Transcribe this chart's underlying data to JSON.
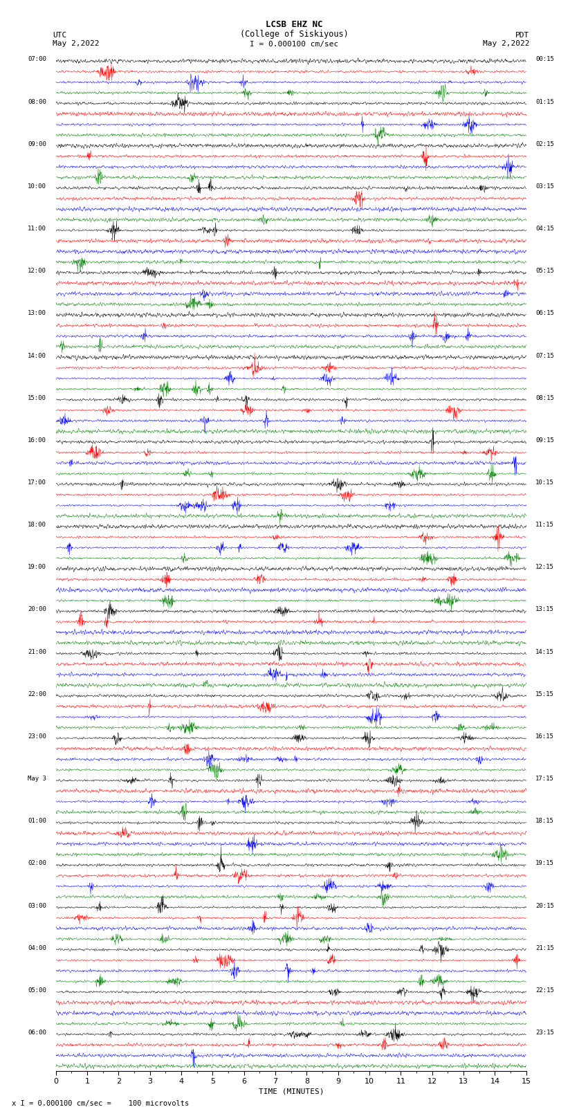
{
  "title_line1": "LCSB EHZ NC",
  "title_line2": "(College of Siskiyous)",
  "left_header": "UTC",
  "right_header": "PDT",
  "left_date": "May 2,2022",
  "right_date": "May 2,2022",
  "scale_text": "I = 0.000100 cm/sec",
  "footer_text": "x I = 0.000100 cm/sec =    100 microvolts",
  "xlabel": "TIME (MINUTES)",
  "trace_colors": [
    "black",
    "red",
    "blue",
    "green"
  ],
  "num_hour_groups": 24,
  "traces_per_group": 4,
  "bg_color": "#ffffff",
  "fig_width": 8.5,
  "fig_height": 16.13,
  "left_utc_labels": [
    "07:00",
    "08:00",
    "09:00",
    "10:00",
    "11:00",
    "12:00",
    "13:00",
    "14:00",
    "15:00",
    "16:00",
    "17:00",
    "18:00",
    "19:00",
    "20:00",
    "21:00",
    "22:00",
    "23:00",
    "May 3",
    "01:00",
    "02:00",
    "03:00",
    "04:00",
    "05:00",
    "06:00"
  ],
  "right_pdt_labels": [
    "00:15",
    "01:15",
    "02:15",
    "03:15",
    "04:15",
    "05:15",
    "06:15",
    "07:15",
    "08:15",
    "09:15",
    "10:15",
    "11:15",
    "12:15",
    "13:15",
    "14:15",
    "15:15",
    "16:15",
    "17:15",
    "18:15",
    "19:15",
    "20:15",
    "21:15",
    "22:15",
    "23:15"
  ],
  "seed": 42,
  "noise_amplitude": 0.35
}
